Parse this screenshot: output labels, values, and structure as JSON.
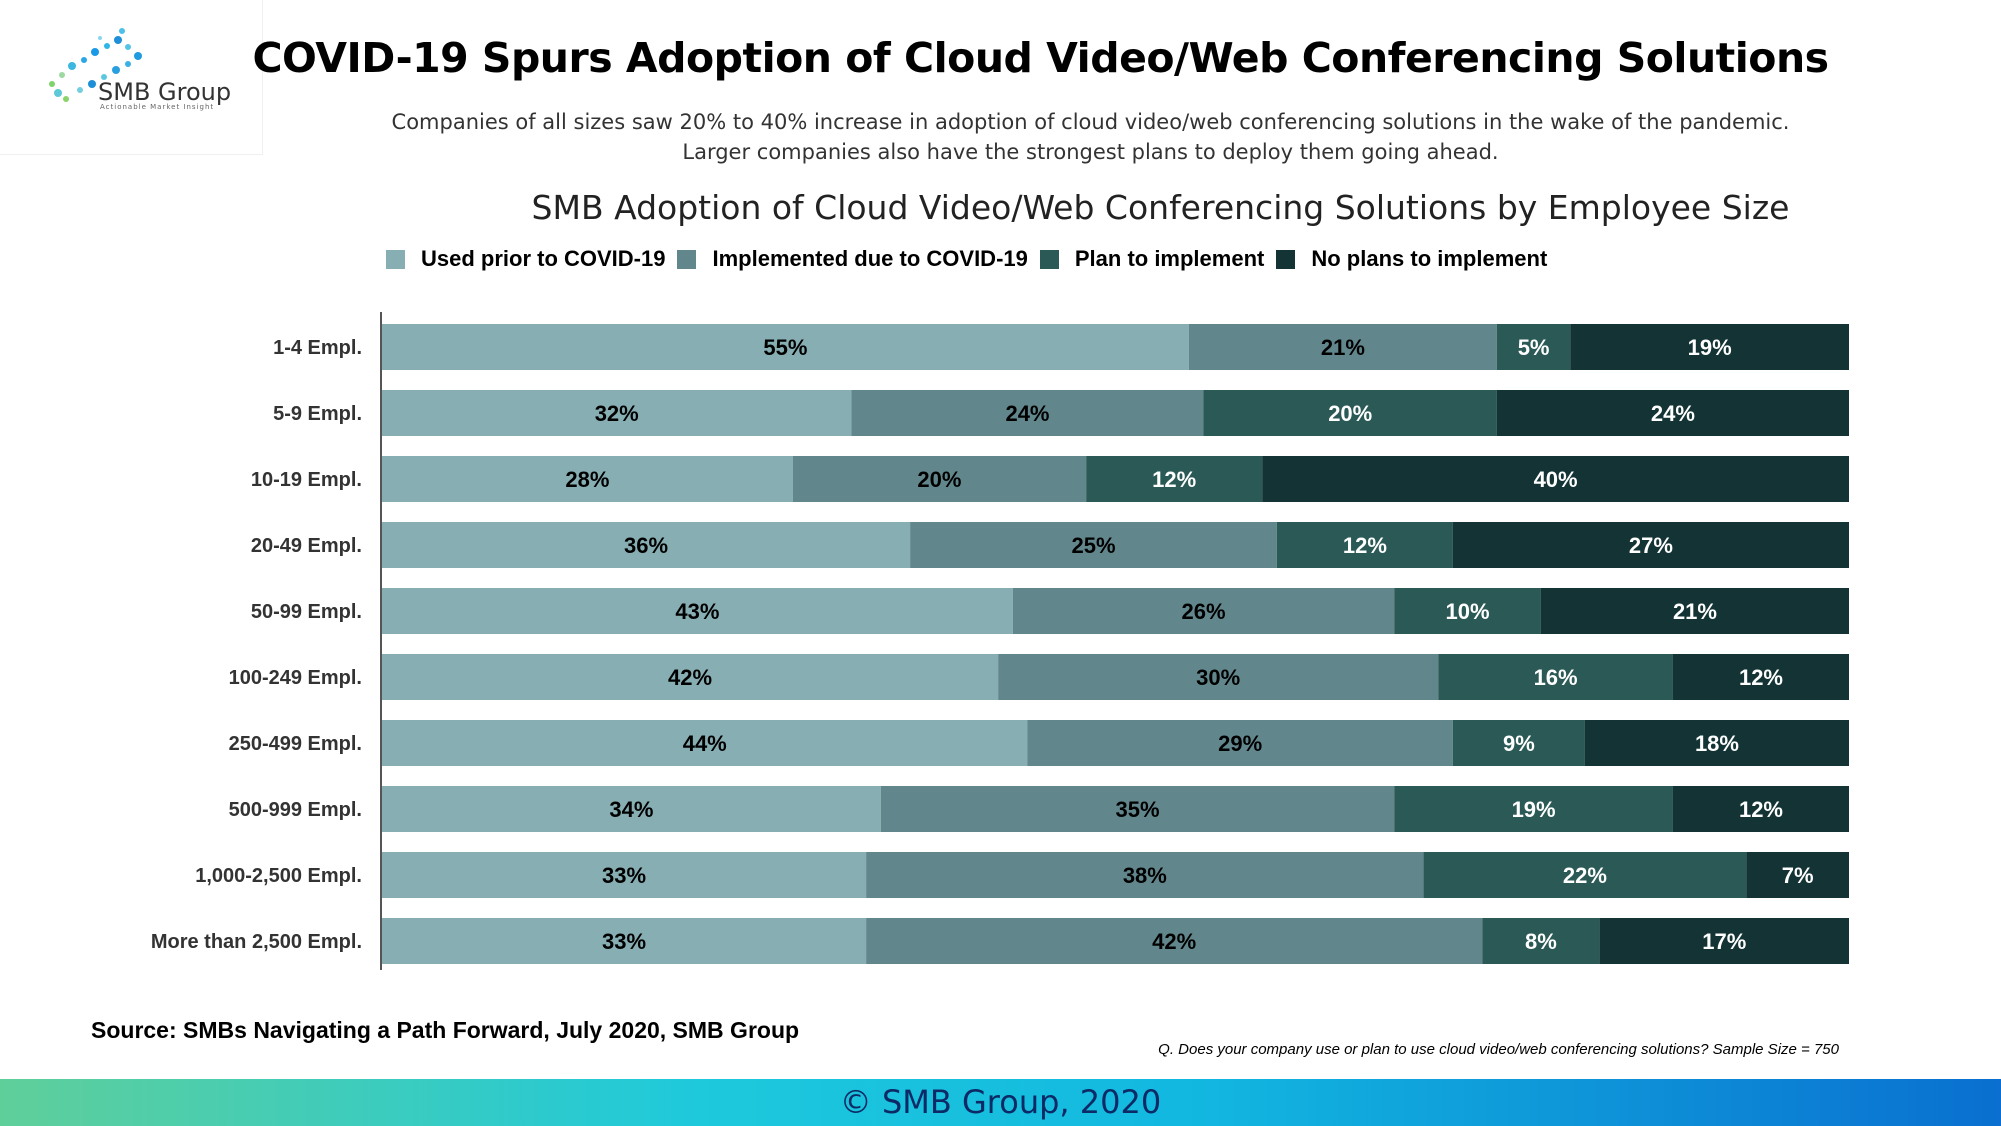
{
  "logo": {
    "name": "SMB Group",
    "tagline": "Actionable Market Insight"
  },
  "header": {
    "title": "COVID-19 Spurs Adoption of Cloud Video/Web Conferencing Solutions",
    "subtitle_line1": "Companies of all sizes saw 20% to 40% increase in adoption of cloud video/web conferencing solutions in the wake of the pandemic.",
    "subtitle_line2": "Larger companies also have the strongest plans to deploy them going ahead."
  },
  "chart_data": {
    "type": "bar",
    "orientation": "horizontal",
    "stacked": true,
    "title": "SMB Adoption of Cloud Video/Web Conferencing Solutions by Employee Size",
    "xlabel": "",
    "ylabel": "",
    "xlim": [
      0,
      100
    ],
    "grid": false,
    "legend_position": "top",
    "categories": [
      "1-4 Empl.",
      "5-9 Empl.",
      "10-19 Empl.",
      "20-49 Empl.",
      "50-99 Empl.",
      "100-249 Empl.",
      "250-499 Empl.",
      "500-999 Empl.",
      "1,000-2,500 Empl.",
      "More than 2,500 Empl."
    ],
    "series": [
      {
        "name": "Used prior to COVID-19",
        "color": "#86aeb3",
        "label_color": "#000000",
        "values": [
          55,
          32,
          28,
          36,
          43,
          42,
          44,
          34,
          33,
          33
        ]
      },
      {
        "name": "Implemented due to COVID-19",
        "color": "#61878d",
        "label_color": "#000000",
        "values": [
          21,
          24,
          20,
          25,
          26,
          30,
          29,
          35,
          38,
          42
        ]
      },
      {
        "name": "Plan to implement",
        "color": "#2b5a56",
        "label_color": "#ffffff",
        "values": [
          5,
          20,
          12,
          12,
          10,
          16,
          9,
          19,
          22,
          8
        ]
      },
      {
        "name": "No plans to implement",
        "color": "#133335",
        "label_color": "#ffffff",
        "values": [
          19,
          24,
          40,
          27,
          21,
          12,
          18,
          12,
          7,
          17
        ]
      }
    ]
  },
  "footer": {
    "source": "Source: SMBs Navigating a Path Forward, July 2020, SMB Group",
    "question": "Q. Does your company use or plan to use cloud video/web conferencing solutions? Sample Size = 750",
    "copyright": "© SMB Group, 2020"
  }
}
